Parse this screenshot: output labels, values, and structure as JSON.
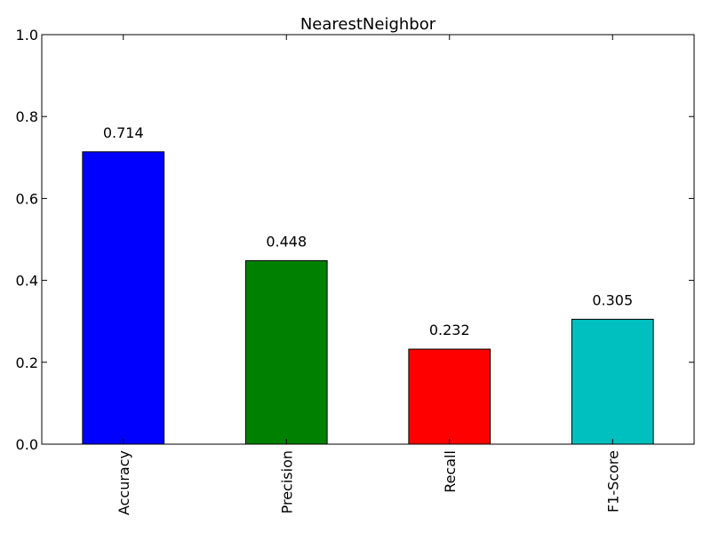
{
  "chart_data": {
    "type": "bar",
    "title": "NearestNeighbor",
    "xlabel": "",
    "ylabel": "",
    "categories": [
      "Accuracy",
      "Precision",
      "Recall",
      "F1-Score"
    ],
    "values": [
      0.714,
      0.448,
      0.232,
      0.305
    ],
    "value_labels": [
      "0.714",
      "0.448",
      "0.232",
      "0.305"
    ],
    "colors": [
      "#0000ff",
      "#008000",
      "#ff0000",
      "#00bfbf"
    ],
    "ylim": [
      0,
      1
    ],
    "yticks": [
      0.0,
      0.2,
      0.4,
      0.6,
      0.8,
      1.0
    ],
    "ytick_labels": [
      "0.0",
      "0.2",
      "0.4",
      "0.6",
      "0.8",
      "1.0"
    ],
    "grid": false,
    "legend": "none"
  }
}
